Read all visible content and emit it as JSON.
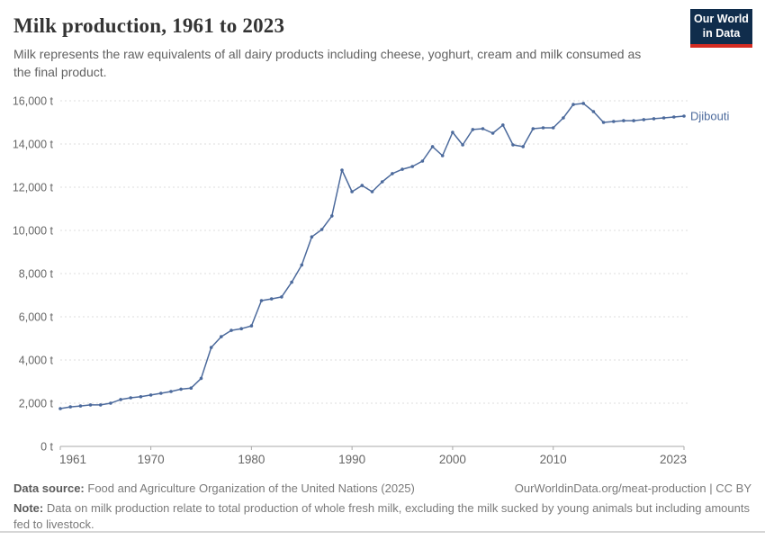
{
  "header": {
    "title": "Milk production, 1961 to 2023",
    "subtitle": "Milk represents the raw equivalents of all dairy products including cheese, yoghurt, cream and milk consumed as the final product."
  },
  "logo": {
    "line1": "Our World",
    "line2": "in Data",
    "bg_color": "#102D4C",
    "stripe_color": "#D42B21"
  },
  "chart_data": {
    "type": "line",
    "title": "Milk production, 1961 to 2023",
    "entity_label": "Djibouti",
    "unit": "t",
    "ylim": [
      0,
      16000
    ],
    "yticks": [
      0,
      2000,
      4000,
      6000,
      8000,
      10000,
      12000,
      14000,
      16000
    ],
    "xticks": [
      1961,
      1970,
      1980,
      1990,
      2000,
      2010,
      2023
    ],
    "grid": "horizontal-dashed",
    "legend_position": "right-of-line-end",
    "line_color": "#4C6A9C",
    "axis_text_color": "#666666",
    "grid_color": "#dedede",
    "axis_line_color": "#a8a8a8",
    "x": [
      1961,
      1962,
      1963,
      1964,
      1965,
      1966,
      1967,
      1968,
      1969,
      1970,
      1971,
      1972,
      1973,
      1974,
      1975,
      1976,
      1977,
      1978,
      1979,
      1980,
      1981,
      1982,
      1983,
      1984,
      1985,
      1986,
      1987,
      1988,
      1989,
      1990,
      1991,
      1992,
      1993,
      1994,
      1995,
      1996,
      1997,
      1998,
      1999,
      2000,
      2001,
      2002,
      2003,
      2004,
      2005,
      2006,
      2007,
      2008,
      2009,
      2010,
      2011,
      2012,
      2013,
      2014,
      2015,
      2016,
      2017,
      2018,
      2019,
      2020,
      2021,
      2022,
      2023
    ],
    "series": [
      {
        "name": "Djibouti",
        "values": [
          1750,
          1830,
          1870,
          1920,
          1920,
          2000,
          2170,
          2250,
          2300,
          2380,
          2460,
          2540,
          2650,
          2700,
          3150,
          4580,
          5080,
          5370,
          5450,
          5580,
          6750,
          6830,
          6920,
          7600,
          8400,
          9700,
          10040,
          10670,
          12790,
          11790,
          12080,
          11790,
          12250,
          12630,
          12830,
          12960,
          13210,
          13880,
          13460,
          14540,
          13960,
          14670,
          14710,
          14500,
          14880,
          13960,
          13880,
          14710,
          14750,
          14750,
          15210,
          15830,
          15880,
          15500,
          15000,
          15040,
          15080,
          15080,
          15130,
          15170,
          15210,
          15250,
          15290
        ]
      }
    ]
  },
  "footer": {
    "datasource_label": "Data source:",
    "datasource_text": "Food and Agriculture Organization of the United Nations (2025)",
    "attribution": "OurWorldinData.org/meat-production | CC BY",
    "note_label": "Note:",
    "note_text": "Data on milk production relate to total production of whole fresh milk, excluding the milk sucked by young animals but including amounts fed to livestock."
  }
}
